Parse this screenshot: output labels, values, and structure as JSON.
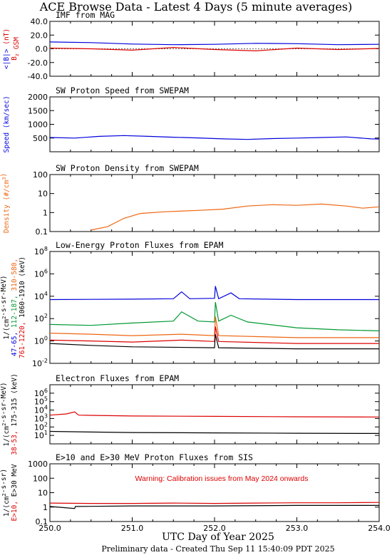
{
  "page": {
    "title": "ACE Browse Data - Latest 4 Days (5 minute averages)",
    "footer": "Preliminary data - Created Thu Sep 11 15:40:09 PDT 2025"
  },
  "colors": {
    "blue": "#0000dd",
    "red": "#dd0000",
    "green": "#009933",
    "orange": "#ee6611",
    "black": "#000000"
  },
  "chart_data": [
    {
      "type": "line",
      "title": "IMF from MAG",
      "ylim": [
        -40,
        40
      ],
      "log": false,
      "yticks": [
        "-40.0",
        "-20.0",
        "0.0",
        "20.0",
        "40.0"
      ],
      "ylabel_parts": [
        {
          "text": "<|B|>",
          "color": "blue"
        },
        {
          "text": " (nT)",
          "color": "red"
        },
        {
          "text": "B",
          "color": "red",
          "line": 2
        },
        {
          "text": "z",
          "color": "red",
          "line": 2,
          "sub": true
        },
        {
          "text": " GSM",
          "color": "red",
          "line": 2
        }
      ],
      "series": [
        {
          "color": "blue",
          "values": [
            [
              250.0,
              10
            ],
            [
              250.5,
              9
            ],
            [
              251.0,
              7
            ],
            [
              251.5,
              6
            ],
            [
              252.0,
              6.5
            ],
            [
              252.5,
              8
            ],
            [
              253.0,
              7.5
            ],
            [
              253.5,
              6
            ],
            [
              254.0,
              6.5
            ]
          ]
        },
        {
          "color": "red",
          "values": [
            [
              250.0,
              1
            ],
            [
              250.5,
              0
            ],
            [
              251.0,
              -2
            ],
            [
              251.5,
              2
            ],
            [
              252.0,
              -1
            ],
            [
              252.5,
              -3
            ],
            [
              253.0,
              1
            ],
            [
              253.5,
              -1
            ],
            [
              254.0,
              0.5
            ]
          ]
        }
      ]
    },
    {
      "type": "line",
      "title": "SW Proton Speed from SWEPAM",
      "ylim": [
        0,
        2000
      ],
      "log": false,
      "yticks": [
        "500",
        "1000",
        "1500",
        "2000"
      ],
      "ylabel_parts": [
        {
          "text": "Speed (km/sec)",
          "color": "blue"
        }
      ],
      "series": [
        {
          "color": "blue",
          "values": [
            [
              250.0,
              520
            ],
            [
              250.3,
              500
            ],
            [
              250.6,
              560
            ],
            [
              250.9,
              590
            ],
            [
              251.2,
              560
            ],
            [
              251.5,
              530
            ],
            [
              251.8,
              505
            ],
            [
              252.1,
              470
            ],
            [
              252.4,
              450
            ],
            [
              252.7,
              480
            ],
            [
              253.0,
              500
            ],
            [
              253.3,
              520
            ],
            [
              253.6,
              540
            ],
            [
              253.9,
              470
            ],
            [
              254.0,
              465
            ]
          ]
        }
      ]
    },
    {
      "type": "line",
      "title": "SW Proton Density from SWEPAM",
      "ylim": [
        0.1,
        100
      ],
      "log": true,
      "yticks": [
        "0.1",
        "1",
        "10",
        "100"
      ],
      "ylabel_parts": [
        {
          "text": "Density (#/cm",
          "color": "orange"
        },
        {
          "text": "3",
          "color": "orange",
          "sup": true
        },
        {
          "text": ")",
          "color": "orange"
        }
      ],
      "series": [
        {
          "color": "orange",
          "values": [
            [
              250.5,
              0.12
            ],
            [
              250.7,
              0.18
            ],
            [
              250.9,
              0.5
            ],
            [
              251.1,
              0.9
            ],
            [
              251.4,
              1.1
            ],
            [
              251.8,
              1.3
            ],
            [
              252.1,
              1.5
            ],
            [
              252.4,
              2.2
            ],
            [
              252.7,
              2.6
            ],
            [
              253.0,
              2.4
            ],
            [
              253.3,
              2.8
            ],
            [
              253.6,
              2.2
            ],
            [
              253.8,
              1.7
            ],
            [
              254.0,
              2.0
            ]
          ]
        }
      ]
    },
    {
      "type": "line",
      "title": "Low-Energy Proton Fluxes from EPAM",
      "ylim": [
        0.01,
        100000000
      ],
      "log": true,
      "yticks": [
        "10^-2",
        "10^0",
        "10^2",
        "10^4",
        "10^6",
        "10^8"
      ],
      "ylabel_parts": [
        {
          "text": "1/(cm",
          "color": "black"
        },
        {
          "text": "2",
          "color": "black",
          "sup": true
        },
        {
          "text": "-s-sr-MeV)",
          "color": "black"
        },
        {
          "text": "47-65,",
          "color": "blue",
          "line": 2
        },
        {
          "text": "  112-187,",
          "color": "green",
          "line": 2
        },
        {
          "text": "  310-580,",
          "color": "orange",
          "line": 2
        },
        {
          "text": "761-1220,",
          "color": "red",
          "line": 3
        },
        {
          "text": " 1060-1910 (keV)",
          "color": "black",
          "line": 3
        }
      ],
      "series": [
        {
          "color": "blue",
          "values": [
            [
              250.0,
              5000
            ],
            [
              251.0,
              5500
            ],
            [
              251.5,
              6000
            ],
            [
              251.6,
              25000
            ],
            [
              251.7,
              6000
            ],
            [
              252.0,
              6500
            ],
            [
              252.01,
              80000
            ],
            [
              252.05,
              6000
            ],
            [
              252.2,
              20000
            ],
            [
              252.3,
              6000
            ],
            [
              253.0,
              5000
            ],
            [
              254.0,
              5000
            ]
          ]
        },
        {
          "color": "green",
          "values": [
            [
              250.0,
              30
            ],
            [
              250.5,
              25
            ],
            [
              251.0,
              40
            ],
            [
              251.5,
              60
            ],
            [
              251.6,
              400
            ],
            [
              251.8,
              60
            ],
            [
              252.0,
              50
            ],
            [
              252.01,
              3000
            ],
            [
              252.05,
              60
            ],
            [
              252.2,
              200
            ],
            [
              252.4,
              50
            ],
            [
              253.0,
              15
            ],
            [
              253.5,
              10
            ],
            [
              254.0,
              8
            ]
          ]
        },
        {
          "color": "orange",
          "values": [
            [
              250.0,
              5
            ],
            [
              250.5,
              4
            ],
            [
              251.0,
              3
            ],
            [
              251.6,
              4
            ],
            [
              252.0,
              3
            ],
            [
              252.01,
              150
            ],
            [
              252.05,
              3
            ],
            [
              253.0,
              2
            ],
            [
              254.0,
              2
            ]
          ]
        },
        {
          "color": "red",
          "values": [
            [
              250.0,
              1.2
            ],
            [
              250.5,
              1
            ],
            [
              251.0,
              0.8
            ],
            [
              251.6,
              1.2
            ],
            [
              252.0,
              0.9
            ],
            [
              252.01,
              20
            ],
            [
              252.05,
              0.9
            ],
            [
              253.0,
              0.6
            ],
            [
              254.0,
              0.6
            ]
          ]
        },
        {
          "color": "black",
          "values": [
            [
              250.0,
              0.6
            ],
            [
              250.5,
              0.4
            ],
            [
              251.0,
              0.3
            ],
            [
              252.0,
              0.25
            ],
            [
              252.01,
              4
            ],
            [
              252.05,
              0.25
            ],
            [
              253.0,
              0.2
            ],
            [
              254.0,
              0.2
            ]
          ]
        }
      ]
    },
    {
      "type": "line",
      "title": "Electron Fluxes from EPAM",
      "ylim": [
        1,
        10000000
      ],
      "log": true,
      "yticks": [
        "10^1",
        "10^2",
        "10^3",
        "10^4",
        "10^5",
        "10^6"
      ],
      "ylabel_parts": [
        {
          "text": "1/(cm",
          "color": "black"
        },
        {
          "text": "2",
          "color": "black",
          "sup": true
        },
        {
          "text": "-s-sr-MeV)",
          "color": "black"
        },
        {
          "text": "38-53,",
          "color": "red",
          "line": 2
        },
        {
          "text": " 175-315 (keV)",
          "color": "black",
          "line": 2
        }
      ],
      "series": [
        {
          "color": "red",
          "values": [
            [
              250.0,
              2500
            ],
            [
              250.2,
              3500
            ],
            [
              250.3,
              6000
            ],
            [
              250.35,
              2500
            ],
            [
              251.0,
              2000
            ],
            [
              252.0,
              1800
            ],
            [
              253.0,
              1600
            ],
            [
              254.0,
              1500
            ]
          ]
        },
        {
          "color": "black",
          "values": [
            [
              250.0,
              30
            ],
            [
              250.5,
              25
            ],
            [
              251.0,
              22
            ],
            [
              252.0,
              20
            ],
            [
              253.0,
              18
            ],
            [
              254.0,
              17
            ]
          ]
        }
      ]
    },
    {
      "type": "line",
      "title": "E>10 and E>30 MeV Proton Fluxes from SIS",
      "ylim": [
        0.1,
        1000
      ],
      "log": true,
      "yticks": [
        "0.1",
        "1",
        "10",
        "100",
        "1000"
      ],
      "annotation": "Warning: Calibration issues from May 2024 onwards",
      "ylabel_parts": [
        {
          "text": "1/(cm",
          "color": "black"
        },
        {
          "text": "2",
          "color": "black",
          "sup": true
        },
        {
          "text": "-s-sr)",
          "color": "black"
        },
        {
          "text": "E>10,",
          "color": "red",
          "line": 2
        },
        {
          "text": " E>30 MeV",
          "color": "black",
          "line": 2
        }
      ],
      "series": [
        {
          "color": "red",
          "values": [
            [
              250.0,
              1.9
            ],
            [
              250.5,
              1.8
            ],
            [
              251.0,
              1.8
            ],
            [
              251.5,
              1.9
            ],
            [
              252.0,
              1.8
            ],
            [
              252.5,
              1.9
            ],
            [
              253.0,
              2.0
            ],
            [
              253.5,
              2.0
            ],
            [
              254.0,
              2.1
            ]
          ]
        },
        {
          "color": "black",
          "values": [
            [
              250.0,
              1.1
            ],
            [
              250.3,
              0.8
            ],
            [
              250.31,
              1.1
            ],
            [
              251.0,
              1.2
            ],
            [
              252.0,
              1.2
            ],
            [
              253.0,
              1.3
            ],
            [
              254.0,
              1.3
            ]
          ]
        }
      ]
    }
  ],
  "xaxis": {
    "label": "UTC Day of Year 2025",
    "range": [
      250.0,
      254.0
    ],
    "ticks": [
      "250.0",
      "251.0",
      "252.0",
      "253.0",
      "254.0"
    ]
  }
}
